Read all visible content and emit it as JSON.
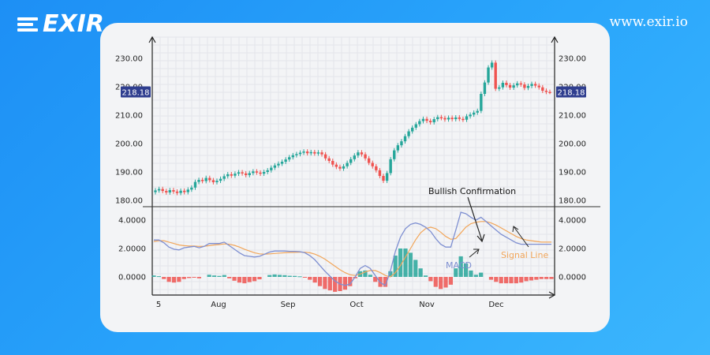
{
  "brand": {
    "logo_text": "EXIR",
    "url": "www.exir.io"
  },
  "colors": {
    "background": "#1f93f6",
    "up": "#26a69a",
    "down": "#ef5350",
    "macd_line": "#7e8fd1",
    "signal_line": "#f2a65a",
    "price_tag": "#2f3e8f"
  },
  "chart_data": [
    {
      "type": "candlestick",
      "title": "",
      "current_price_label": "218.18",
      "y_ticks": [
        "230.00",
        "220.00",
        "210.00",
        "200.00",
        "190.00",
        "180.00"
      ],
      "ylim": [
        178.5,
        232.5
      ],
      "x_ticks": [
        "5",
        "Aug",
        "Sep",
        "Oct",
        "Nov",
        "Dec"
      ],
      "grid": true,
      "close": [
        183.5,
        184.0,
        183.3,
        182.8,
        183.6,
        183.1,
        182.6,
        183.4,
        182.9,
        183.8,
        184.5,
        186.5,
        187.2,
        186.8,
        187.9,
        187.1,
        186.4,
        186.9,
        187.6,
        188.5,
        189.2,
        188.7,
        189.4,
        189.9,
        189.5,
        188.9,
        189.6,
        190.2,
        189.8,
        189.4,
        190.0,
        190.6,
        191.5,
        192.3,
        192.9,
        193.6,
        194.4,
        195.2,
        195.9,
        196.3,
        196.8,
        197.2,
        196.6,
        197.0,
        196.5,
        196.9,
        196.2,
        194.8,
        193.9,
        192.6,
        191.8,
        191.2,
        192.0,
        193.2,
        194.5,
        195.8,
        196.9,
        196.2,
        194.8,
        193.2,
        192.0,
        190.6,
        188.6,
        186.9,
        189.6,
        194.5,
        197.6,
        199.4,
        200.8,
        202.6,
        204.3,
        205.6,
        206.8,
        207.9,
        208.7,
        208.0,
        207.5,
        208.6,
        209.3,
        209.0,
        208.5,
        209.1,
        208.6,
        209.2,
        208.7,
        208.4,
        209.6,
        210.2,
        210.9,
        211.5,
        217.5,
        221.5,
        226.8,
        228.5,
        219.3,
        219.8,
        221.4,
        220.6,
        219.7,
        220.5,
        221.2,
        220.8,
        219.6,
        220.3,
        221.0,
        220.4,
        219.8,
        218.6,
        218.2,
        218.18
      ],
      "macd_panel": {
        "y_ticks": [
          "4.0000",
          "2.0000",
          "0.0000"
        ],
        "ylim": [
          -1.2,
          4.8
        ],
        "macd": [
          2.6,
          2.6,
          2.4,
          2.1,
          1.95,
          1.9,
          2.05,
          2.1,
          2.15,
          2.05,
          2.15,
          2.35,
          2.35,
          2.35,
          2.45,
          2.2,
          1.95,
          1.7,
          1.5,
          1.45,
          1.4,
          1.45,
          1.6,
          1.75,
          1.82,
          1.82,
          1.82,
          1.8,
          1.8,
          1.78,
          1.7,
          1.5,
          1.2,
          0.8,
          0.4,
          0.05,
          -0.3,
          -0.5,
          -0.6,
          -0.5,
          0.0,
          0.6,
          0.8,
          0.6,
          0.1,
          -0.4,
          -0.6,
          0.4,
          1.8,
          2.8,
          3.4,
          3.7,
          3.8,
          3.7,
          3.5,
          3.2,
          2.7,
          2.3,
          2.1,
          2.1,
          3.3,
          4.55,
          4.45,
          4.2,
          4.0,
          4.2,
          3.9,
          3.6,
          3.3,
          3.0,
          2.8,
          2.6,
          2.4,
          2.3,
          2.3,
          2.3,
          2.3,
          2.3,
          2.3,
          2.3
        ],
        "signal": [
          2.5,
          2.55,
          2.55,
          2.45,
          2.35,
          2.25,
          2.2,
          2.18,
          2.18,
          2.15,
          2.16,
          2.2,
          2.25,
          2.28,
          2.32,
          2.3,
          2.22,
          2.1,
          1.95,
          1.82,
          1.7,
          1.62,
          1.6,
          1.62,
          1.65,
          1.68,
          1.7,
          1.72,
          1.73,
          1.74,
          1.74,
          1.7,
          1.6,
          1.45,
          1.25,
          1.0,
          0.75,
          0.5,
          0.3,
          0.15,
          0.1,
          0.2,
          0.35,
          0.45,
          0.45,
          0.3,
          0.1,
          0.0,
          0.3,
          0.8,
          1.4,
          2.0,
          2.6,
          3.1,
          3.4,
          3.5,
          3.4,
          3.15,
          2.85,
          2.65,
          2.7,
          3.1,
          3.5,
          3.75,
          3.85,
          3.9,
          3.9,
          3.8,
          3.65,
          3.45,
          3.25,
          3.05,
          2.85,
          2.7,
          2.6,
          2.55,
          2.5,
          2.45,
          2.45,
          2.45
        ],
        "annotations": [
          "Bullish Confirmation",
          "MACD",
          "Signal Line"
        ]
      }
    }
  ]
}
